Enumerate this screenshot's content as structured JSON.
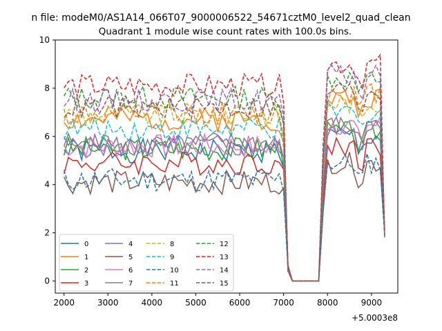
{
  "chart_data": {
    "type": "line",
    "suptitle": "n file: modeM0/AS1A14_066T07_9000006522_54671cztM0_level2_quad_clean",
    "title": "Quadrant 1 module wise count rates with 100.0s bins.",
    "xlabel": "",
    "ylabel": "",
    "x_offset_label": "+5.0003e8",
    "xlim": [
      1800,
      9600
    ],
    "ylim": [
      -0.5,
      10.0
    ],
    "x_ticks": [
      2000,
      3000,
      4000,
      5000,
      6000,
      7000,
      8000,
      9000
    ],
    "y_ticks": [
      0,
      2,
      4,
      6,
      8,
      10
    ],
    "grid": false,
    "legend_location": "lower-left",
    "x": [
      2000,
      2100,
      2200,
      2300,
      2400,
      2500,
      2600,
      2700,
      2800,
      2900,
      3000,
      3100,
      3200,
      3300,
      3400,
      3500,
      3600,
      3700,
      3800,
      3900,
      4000,
      4100,
      4200,
      4300,
      4400,
      4500,
      4600,
      4700,
      4800,
      4900,
      5000,
      5100,
      5200,
      5300,
      5400,
      5500,
      5600,
      5700,
      5800,
      5900,
      6000,
      6100,
      6200,
      6300,
      6400,
      6500,
      6600,
      6700,
      6800,
      6900,
      7000,
      7100,
      7200,
      7300,
      7400,
      7500,
      7600,
      7700,
      7800,
      7900,
      8000,
      8100,
      8200,
      8300,
      8400,
      8500,
      8600,
      8700,
      8800,
      8900,
      9000,
      9100,
      9200,
      9300
    ],
    "series": [
      {
        "name": "0",
        "color": "#1f77b4",
        "dashed": false,
        "base": 5.4,
        "burst": 6.0,
        "seed": 1
      },
      {
        "name": "1",
        "color": "#ff7f0e",
        "dashed": false,
        "base": 6.7,
        "burst": 7.6,
        "seed": 2
      },
      {
        "name": "2",
        "color": "#2ca02c",
        "dashed": false,
        "base": 5.5,
        "burst": 6.2,
        "seed": 3
      },
      {
        "name": "3",
        "color": "#d62728",
        "dashed": false,
        "base": 4.9,
        "burst": 5.6,
        "seed": 4
      },
      {
        "name": "4",
        "color": "#9467bd",
        "dashed": false,
        "base": 5.6,
        "burst": 6.4,
        "seed": 5
      },
      {
        "name": "5",
        "color": "#8c564b",
        "dashed": false,
        "base": 4.1,
        "burst": 4.9,
        "seed": 6
      },
      {
        "name": "6",
        "color": "#e377c2",
        "dashed": false,
        "base": 5.6,
        "burst": 6.5,
        "seed": 7
      },
      {
        "name": "7",
        "color": "#7f7f7f",
        "dashed": false,
        "base": 5.7,
        "burst": 6.4,
        "seed": 8
      },
      {
        "name": "8",
        "color": "#bcbd22",
        "dashed": true,
        "base": 6.9,
        "burst": 7.4,
        "seed": 9
      },
      {
        "name": "9",
        "color": "#17becf",
        "dashed": true,
        "base": 6.3,
        "burst": 7.0,
        "seed": 10
      },
      {
        "name": "10",
        "color": "#1f77b4",
        "dashed": true,
        "base": 4.2,
        "burst": 4.9,
        "seed": 11
      },
      {
        "name": "11",
        "color": "#ff7f0e",
        "dashed": true,
        "base": 6.9,
        "burst": 7.8,
        "seed": 12
      },
      {
        "name": "12",
        "color": "#2ca02c",
        "dashed": true,
        "base": 7.6,
        "burst": 8.4,
        "seed": 13
      },
      {
        "name": "13",
        "color": "#d62728",
        "dashed": true,
        "base": 8.1,
        "burst": 9.0,
        "seed": 14
      },
      {
        "name": "14",
        "color": "#9467bd",
        "dashed": true,
        "base": 7.5,
        "burst": 8.5,
        "seed": 15
      },
      {
        "name": "15",
        "color": "#8c564b",
        "dashed": true,
        "base": 7.2,
        "burst": 7.9,
        "seed": 16
      }
    ]
  }
}
